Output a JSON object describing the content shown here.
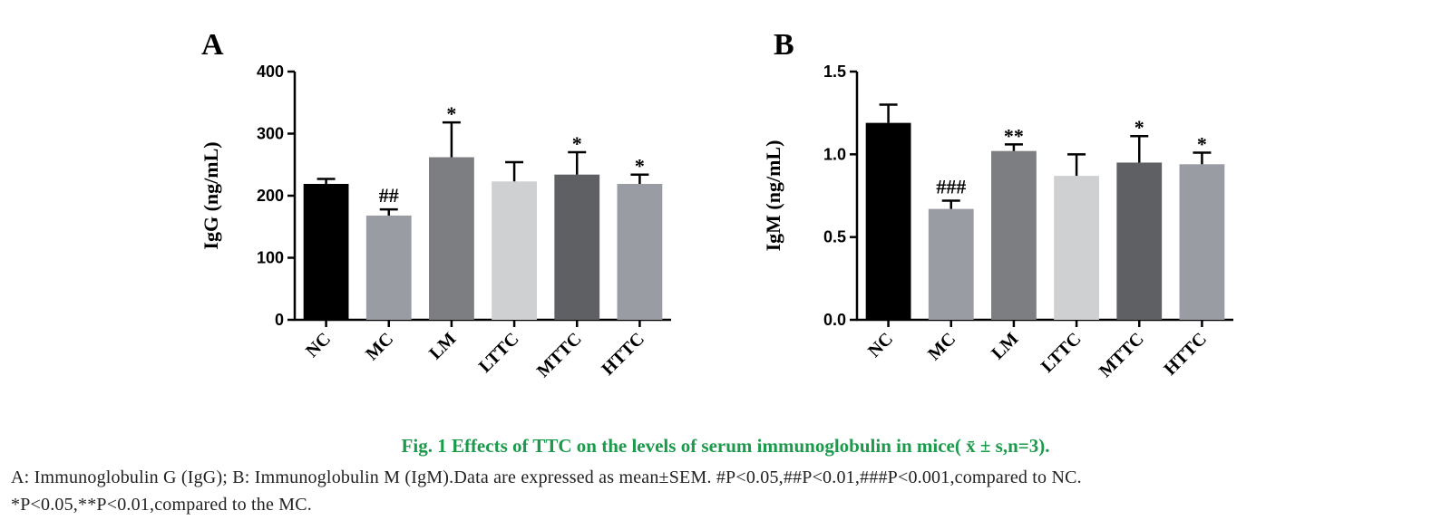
{
  "chart_data": [
    {
      "type": "bar",
      "panel": "A",
      "ylabel": "IgG (ng/mL)",
      "ylim": [
        0,
        400
      ],
      "yticks": [
        "0",
        "100",
        "200",
        "300",
        "400"
      ],
      "categories": [
        "NC",
        "MC",
        "LM",
        "LTTC",
        "MTTC",
        "HTTC"
      ],
      "values": [
        219,
        168,
        262,
        223,
        234,
        219
      ],
      "errors": [
        8,
        10,
        56,
        31,
        36,
        15
      ],
      "colors": [
        "#000000",
        "#9a9ca3",
        "#7d7e82",
        "#cfd0d2",
        "#5f6063",
        "#9a9ca3"
      ],
      "annotations": [
        "",
        "##",
        "*",
        "",
        "*",
        "*"
      ]
    },
    {
      "type": "bar",
      "panel": "B",
      "ylabel": "IgM (ng/mL)",
      "ylim": [
        0,
        1.5
      ],
      "yticks": [
        "0.0",
        "0.5",
        "1.0",
        "1.5"
      ],
      "categories": [
        "NC",
        "MC",
        "LM",
        "LTTC",
        "MTTC",
        "HTTC"
      ],
      "values": [
        1.19,
        0.67,
        1.02,
        0.87,
        0.95,
        0.94
      ],
      "errors": [
        0.11,
        0.05,
        0.04,
        0.13,
        0.16,
        0.07
      ],
      "colors": [
        "#000000",
        "#9a9ca3",
        "#7d7e82",
        "#cfd0d2",
        "#5f6063",
        "#9a9ca3"
      ],
      "annotations": [
        "",
        "###",
        "**",
        "",
        "*",
        "*"
      ]
    }
  ],
  "caption": {
    "title": "Fig. 1 Effects of TTC on the levels of serum immunoglobulin in mice( x̄ ± s,n=3).",
    "line1": "A: Immunoglobulin G (IgG); B: Immunoglobulin M (IgM).Data are expressed as mean±SEM. #P<0.05,##P<0.01,###P<0.001,compared to NC.",
    "line2": "*P<0.05,**P<0.01,compared to the MC."
  }
}
